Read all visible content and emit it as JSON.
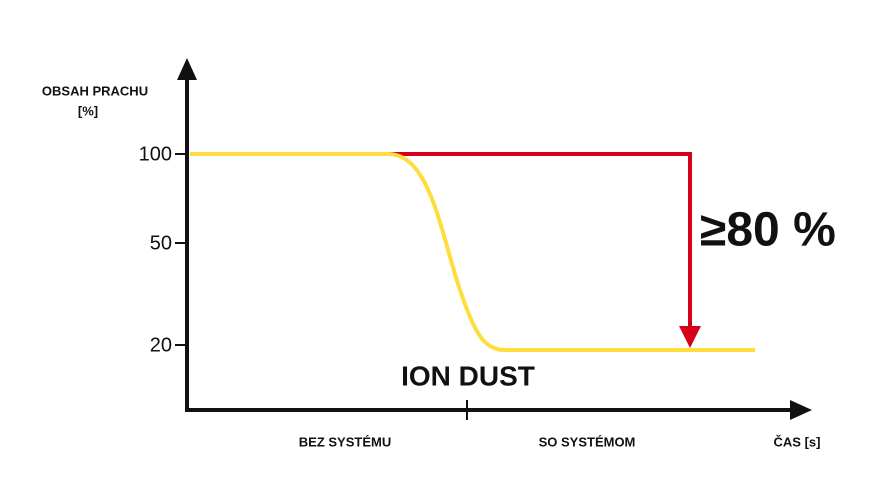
{
  "y_axis": {
    "label_line1": "OBSAH PRACHU",
    "label_line2": "[%]",
    "ticks": [
      "100",
      "50",
      "20"
    ]
  },
  "x_axis": {
    "label": "ČAS [s]",
    "segments": [
      "BEZ SYSTÉMU",
      "SO SYSTÉMOM"
    ]
  },
  "annotations": {
    "system": "ION DUST",
    "reduction": "≥80 %"
  }
}
